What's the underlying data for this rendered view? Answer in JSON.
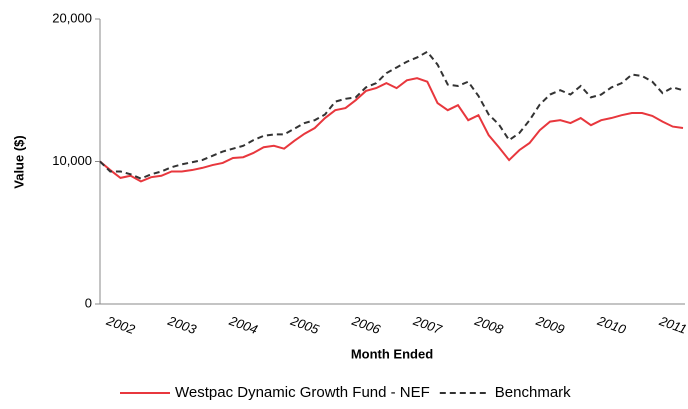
{
  "chart_data": {
    "type": "line",
    "y_label": "Value ($)",
    "x_label": "Month Ended",
    "categories": [
      null,
      null,
      "2002",
      null,
      null,
      null,
      null,
      null,
      "2003",
      null,
      null,
      null,
      null,
      null,
      "2004",
      null,
      null,
      null,
      null,
      null,
      "2005",
      null,
      null,
      null,
      null,
      null,
      "2006",
      null,
      null,
      null,
      null,
      null,
      "2007",
      null,
      null,
      null,
      null,
      null,
      "2008",
      null,
      null,
      null,
      null,
      null,
      "2009",
      null,
      null,
      null,
      null,
      null,
      "2010",
      null,
      null,
      null,
      null,
      null,
      "2011",
      null
    ],
    "series": [
      {
        "name": "Westpac Dynamic Growth Fund - NEF",
        "color": "#e8373d",
        "dash": false,
        "values": [
          10000,
          9400,
          8850,
          9000,
          8600,
          8900,
          9000,
          9300,
          9300,
          9400,
          9550,
          9750,
          9900,
          10250,
          10300,
          10600,
          11000,
          11100,
          10900,
          11450,
          11950,
          12350,
          13050,
          13600,
          13750,
          14300,
          14950,
          15150,
          15500,
          15150,
          15700,
          15850,
          15600,
          14100,
          13600,
          13950,
          12900,
          13250,
          11850,
          11000,
          10100,
          10800,
          11300,
          12200,
          12800,
          12900,
          12700,
          13050,
          12550,
          12900,
          13050,
          13250,
          13400,
          13400,
          13200,
          12800,
          12450,
          12350
        ]
      },
      {
        "name": "Benchmark",
        "color": "#333333",
        "dash": true,
        "values": [
          10000,
          9300,
          9300,
          9100,
          8800,
          9100,
          9300,
          9600,
          9800,
          9950,
          10100,
          10400,
          10700,
          10900,
          11100,
          11500,
          11800,
          11900,
          11900,
          12300,
          12700,
          12900,
          13300,
          14200,
          14400,
          14500,
          15200,
          15500,
          16200,
          16600,
          17000,
          17300,
          17700,
          16800,
          15400,
          15300,
          15600,
          14600,
          13300,
          12600,
          11500,
          12000,
          12900,
          14000,
          14700,
          15000,
          14700,
          15300,
          14500,
          14700,
          15200,
          15500,
          16100,
          16000,
          15600,
          14800,
          15200,
          15000
        ]
      }
    ],
    "ylim": [
      0,
      20000
    ],
    "yticks": [
      0,
      {
        "value": 10000,
        "label": "10,000"
      },
      {
        "value": 20000,
        "label": "20,000"
      }
    ],
    "grid": false,
    "legend": "bottom"
  }
}
